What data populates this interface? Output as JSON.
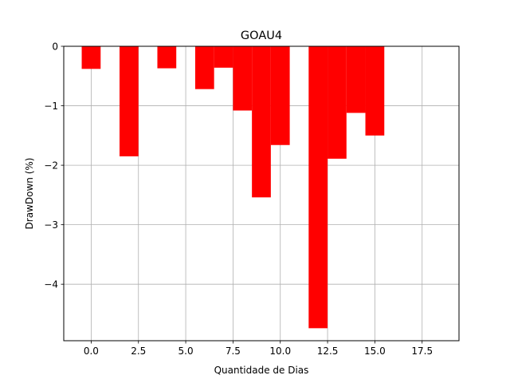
{
  "chart_data": {
    "type": "bar",
    "title": "GOAU4",
    "xlabel": "Quantidade de Dias",
    "ylabel": "DrawDown (%)",
    "xlim": [
      -1.45,
      19.45
    ],
    "ylim": [
      -4.95,
      0
    ],
    "xticks": [
      0.0,
      2.5,
      5.0,
      7.5,
      10.0,
      12.5,
      15.0,
      17.5
    ],
    "xtick_labels": [
      "0.0",
      "2.5",
      "5.0",
      "7.5",
      "10.0",
      "12.5",
      "15.0",
      "17.5"
    ],
    "yticks": [
      0,
      -1,
      -2,
      -3,
      -4
    ],
    "ytick_labels": [
      "0",
      "−1",
      "−2",
      "−3",
      "−4"
    ],
    "grid": true,
    "bar_width": 1,
    "bar_color": "#ff0000",
    "x": [
      0,
      2,
      4,
      6,
      7,
      8,
      9,
      10,
      12,
      13,
      14,
      15
    ],
    "values": [
      -0.38,
      -1.85,
      -0.37,
      -0.72,
      -0.36,
      -1.08,
      -2.54,
      -1.66,
      -4.74,
      -1.89,
      -1.12,
      -1.5
    ]
  }
}
